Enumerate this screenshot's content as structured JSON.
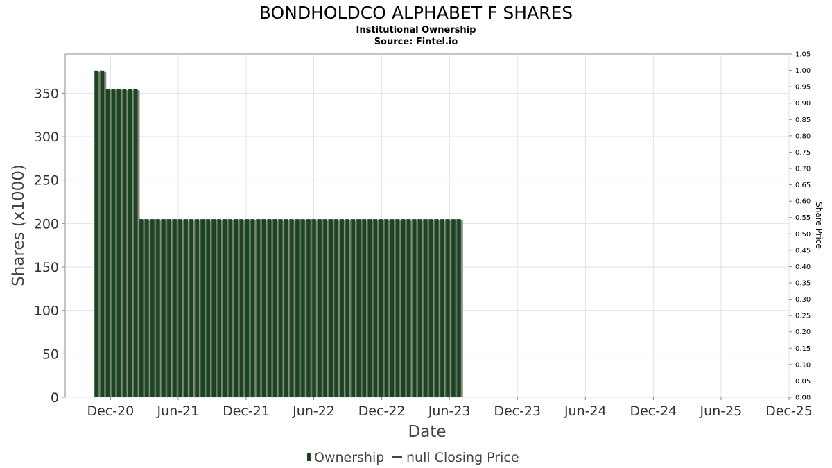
{
  "chart_data": {
    "type": "bar",
    "title": "BONDHOLDCO ALPHABET F SHARES",
    "subtitle_line1": "Institutional Ownership",
    "subtitle_line2": "Source: Fintel.io",
    "xlabel": "Date",
    "ylabel": "Shares (x1000)",
    "ylabel_right": "Share Price",
    "ylim": [
      0,
      395
    ],
    "ylim_right": [
      0,
      1.05
    ],
    "y_ticks": [
      "0",
      "50",
      "100",
      "150",
      "200",
      "250",
      "300",
      "350"
    ],
    "y_ticks_right": [
      "0.00",
      "0.05",
      "0.10",
      "0.15",
      "0.20",
      "0.25",
      "0.30",
      "0.35",
      "0.40",
      "0.45",
      "0.50",
      "0.55",
      "0.60",
      "0.65",
      "0.70",
      "0.75",
      "0.80",
      "0.85",
      "0.90",
      "0.95",
      "1.00",
      "1.05"
    ],
    "x_ticks": [
      "Dec-20",
      "Jun-21",
      "Dec-21",
      "Jun-22",
      "Dec-22",
      "Jun-23",
      "Dec-23",
      "Jun-24",
      "Dec-24",
      "Jun-25",
      "Dec-25"
    ],
    "x_range": [
      "2020-08-01",
      "2025-12-01"
    ],
    "bar_interval_days": 15,
    "bar_color": "#1b4422",
    "shadow_color": "#8a8a82",
    "series": [
      {
        "name": "Ownership",
        "dates": [
          "2020-10-24",
          "2020-11-08",
          "2020-11-23",
          "2020-12-08",
          "2020-12-23",
          "2021-01-07",
          "2021-01-22",
          "2021-02-06",
          "2021-02-21",
          "2021-03-08",
          "2021-03-23",
          "2021-04-07",
          "2021-04-22",
          "2021-05-07",
          "2021-05-22",
          "2021-06-06",
          "2021-06-21",
          "2021-07-06",
          "2021-07-21",
          "2021-08-05",
          "2021-08-20",
          "2021-09-04",
          "2021-09-19",
          "2021-10-04",
          "2021-10-19",
          "2021-11-03",
          "2021-11-18",
          "2021-12-03",
          "2021-12-18",
          "2022-01-02",
          "2022-01-17",
          "2022-02-01",
          "2022-02-16",
          "2022-03-03",
          "2022-03-18",
          "2022-04-02",
          "2022-04-17",
          "2022-05-02",
          "2022-05-17",
          "2022-06-01",
          "2022-06-16",
          "2022-07-01",
          "2022-07-16",
          "2022-07-31",
          "2022-08-15",
          "2022-08-30",
          "2022-09-14",
          "2022-09-29",
          "2022-10-14",
          "2022-10-29",
          "2022-11-13",
          "2022-11-28",
          "2022-12-13",
          "2022-12-28",
          "2023-01-12",
          "2023-01-27",
          "2023-02-11",
          "2023-02-26",
          "2023-03-13",
          "2023-03-28",
          "2023-04-12",
          "2023-04-27",
          "2023-05-12",
          "2023-05-27",
          "2023-06-11",
          "2023-06-26"
        ],
        "values": [
          376,
          376,
          355,
          355,
          355,
          355,
          355,
          355,
          205,
          205,
          205,
          205,
          205,
          205,
          205,
          205,
          205,
          205,
          205,
          205,
          205,
          205,
          205,
          205,
          205,
          205,
          205,
          205,
          205,
          205,
          205,
          205,
          205,
          205,
          205,
          205,
          205,
          205,
          205,
          205,
          205,
          205,
          205,
          205,
          205,
          205,
          205,
          205,
          205,
          205,
          205,
          205,
          205,
          205,
          205,
          205,
          205,
          205,
          205,
          205,
          205,
          205,
          205,
          205,
          205,
          205
        ]
      }
    ],
    "legend": [
      {
        "label": "Ownership",
        "swatch": "bar"
      },
      {
        "label": "null Closing Price",
        "swatch": "line"
      }
    ],
    "grid": true,
    "legend_position": "bottom"
  }
}
